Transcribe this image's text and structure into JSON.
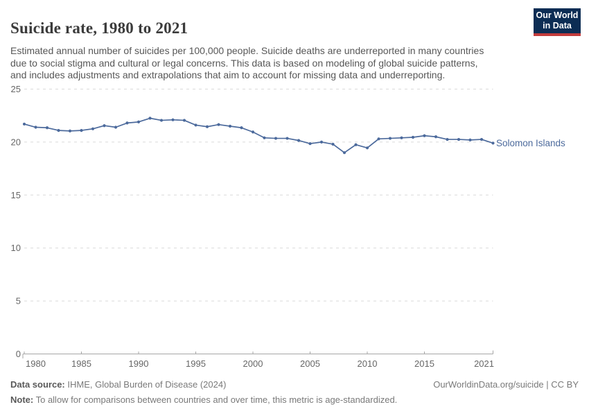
{
  "header": {
    "title": "Suicide rate, 1980 to 2021",
    "subtitle_lines": [
      "Estimated annual number of suicides per 100,000 people. Suicide deaths are underreported in many countries",
      "due to social stigma and cultural or legal concerns. This data is based on modeling of global suicide patterns,",
      "and includes adjustments and extrapolations that aim to account for missing data and underreporting."
    ],
    "logo": {
      "line1": "Our World",
      "line2": "in Data"
    }
  },
  "chart_data": {
    "type": "line",
    "title": "Suicide rate, 1980 to 2021",
    "xlabel": "",
    "ylabel": "",
    "xlim": [
      1980,
      2021
    ],
    "ylim": [
      0,
      25
    ],
    "y_ticks": [
      0,
      5,
      10,
      15,
      20,
      25
    ],
    "x_ticks": [
      1980,
      1985,
      1990,
      1995,
      2000,
      2005,
      2010,
      2015,
      2021
    ],
    "grid": "horizontal-dashed",
    "legend_position": "end-of-line-label",
    "end_label": "Solomon Islands",
    "series": [
      {
        "name": "Solomon Islands",
        "color": "#4C6A9C",
        "x": [
          1980,
          1981,
          1982,
          1983,
          1984,
          1985,
          1986,
          1987,
          1988,
          1989,
          1990,
          1991,
          1992,
          1993,
          1994,
          1995,
          1996,
          1997,
          1998,
          1999,
          2000,
          2001,
          2002,
          2003,
          2004,
          2005,
          2006,
          2007,
          2008,
          2009,
          2010,
          2011,
          2012,
          2013,
          2014,
          2015,
          2016,
          2017,
          2018,
          2019,
          2020,
          2021
        ],
        "values": [
          21.7,
          21.4,
          21.35,
          21.1,
          21.05,
          21.1,
          21.25,
          21.55,
          21.4,
          21.8,
          21.9,
          22.25,
          22.05,
          22.1,
          22.05,
          21.6,
          21.45,
          21.65,
          21.5,
          21.35,
          20.95,
          20.4,
          20.35,
          20.35,
          20.15,
          19.85,
          20.0,
          19.8,
          19.0,
          19.75,
          19.45,
          20.3,
          20.35,
          20.4,
          20.45,
          20.6,
          20.5,
          20.25,
          20.25,
          20.2,
          20.25,
          19.9
        ]
      }
    ]
  },
  "footer": {
    "data_source_label": "Data source:",
    "data_source_text": " IHME, Global Burden of Disease (2024)",
    "license_text": "OurWorldinData.org/suicide | CC BY",
    "note_label": "Note:",
    "note_text": " To allow for comparisons between countries and over time, this metric is age-standardized."
  },
  "colors": {
    "line": "#4C6A9C",
    "grid": "#dadada",
    "axis": "#a6a6a6",
    "tick_label": "#666666",
    "title": "#3b3b3b",
    "subtitle": "#575757",
    "logo_bg": "#0c2d54",
    "logo_stripe": "#c33c3c"
  }
}
